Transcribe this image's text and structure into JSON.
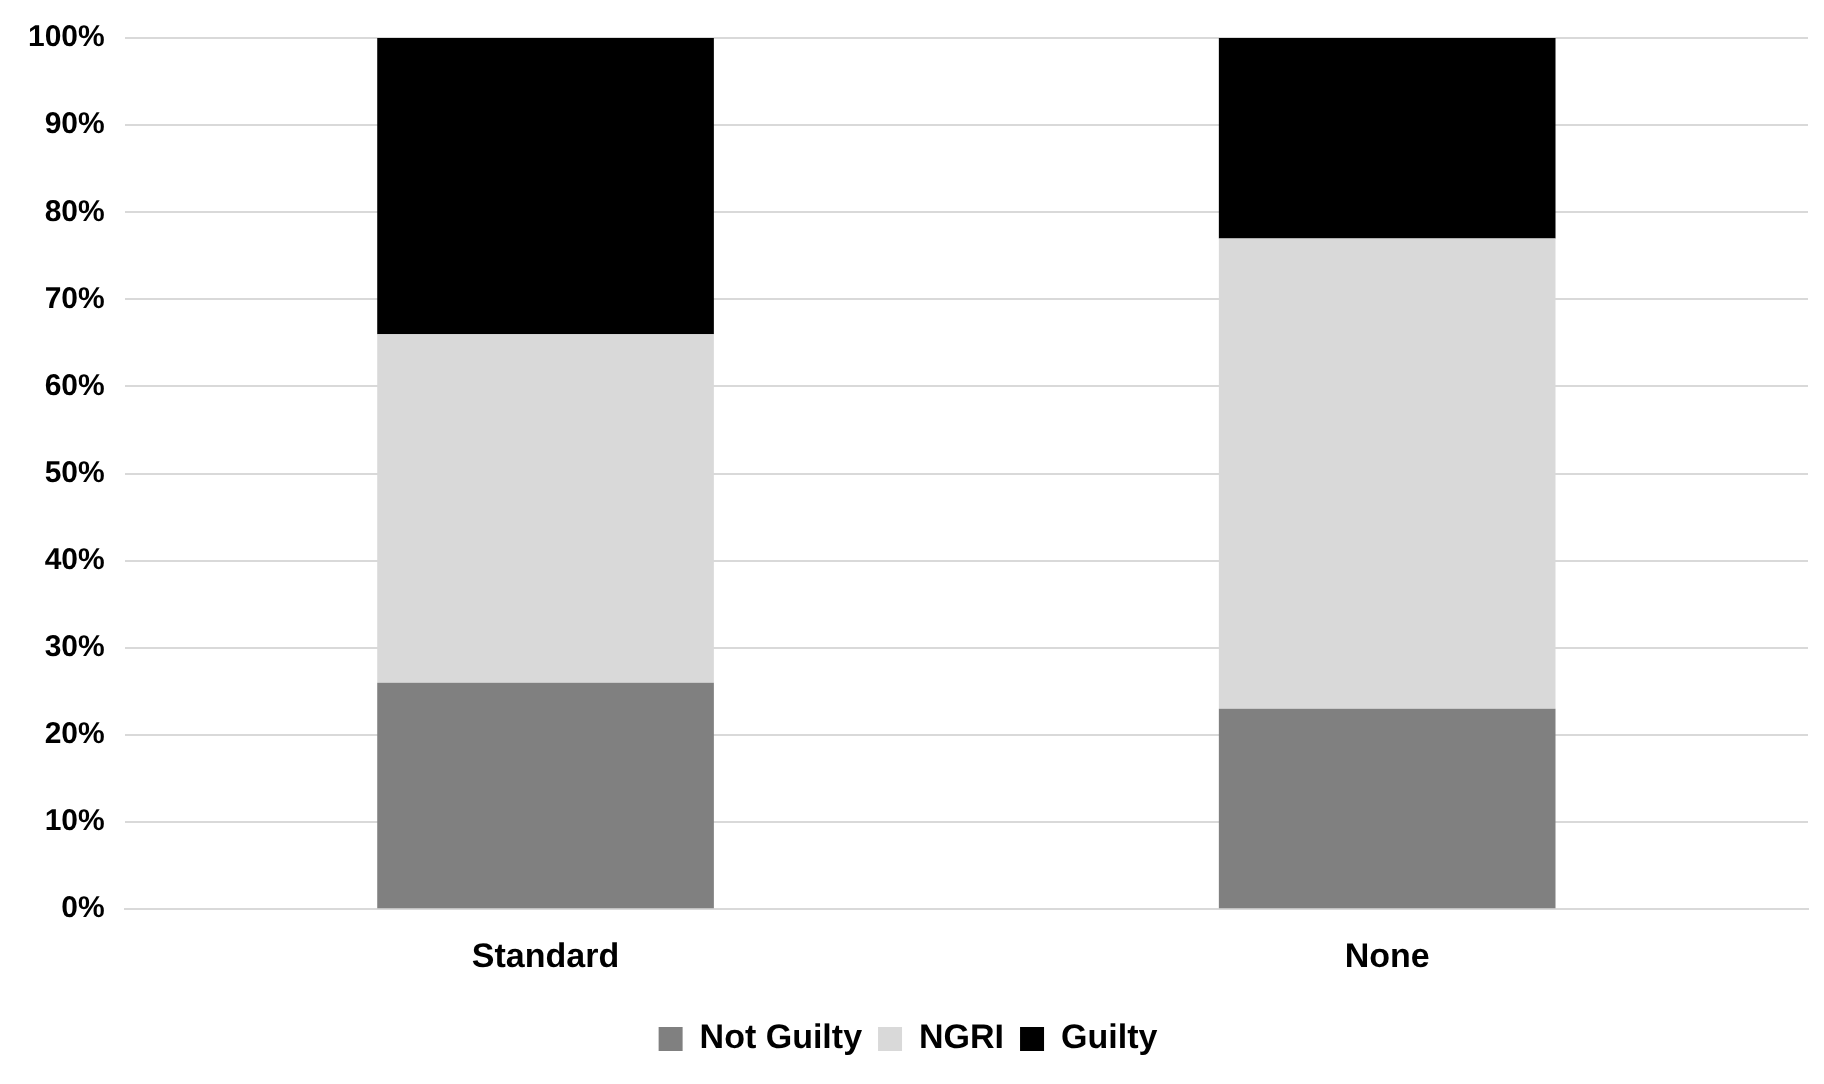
{
  "chart_data": {
    "type": "bar",
    "stacked": true,
    "categories": [
      "Standard",
      "None"
    ],
    "series": [
      {
        "name": "Not Guilty",
        "color": "#808080",
        "values": [
          26,
          23
        ]
      },
      {
        "name": "NGRI",
        "color": "#d9d9d9",
        "values": [
          40,
          54
        ]
      },
      {
        "name": "Guilty",
        "color": "#000000",
        "values": [
          34,
          23
        ]
      }
    ],
    "ylim": [
      0,
      100
    ],
    "yticks": [
      {
        "value": 0,
        "label": "0%"
      },
      {
        "value": 10,
        "label": "10%"
      },
      {
        "value": 20,
        "label": "20%"
      },
      {
        "value": 30,
        "label": "30%"
      },
      {
        "value": 40,
        "label": "40%"
      },
      {
        "value": 50,
        "label": "50%"
      },
      {
        "value": 60,
        "label": "60%"
      },
      {
        "value": 70,
        "label": "70%"
      },
      {
        "value": 80,
        "label": "80%"
      },
      {
        "value": 90,
        "label": "90%"
      },
      {
        "value": 100,
        "label": "100%"
      }
    ],
    "grid": "y",
    "legend": "bottom"
  }
}
